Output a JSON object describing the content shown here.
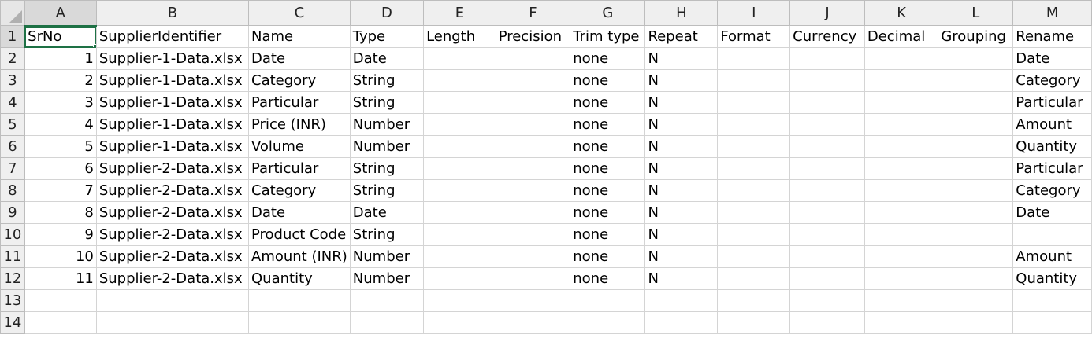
{
  "columns": [
    "A",
    "B",
    "C",
    "D",
    "E",
    "F",
    "G",
    "H",
    "I",
    "J",
    "K",
    "L",
    "M"
  ],
  "row_numbers": [
    "1",
    "2",
    "3",
    "4",
    "5",
    "6",
    "7",
    "8",
    "9",
    "10",
    "11",
    "12",
    "13",
    "14"
  ],
  "rows": [
    [
      "SrNo",
      "SupplierIdentifier",
      "Name",
      "Type",
      "Length",
      "Precision",
      "Trim type",
      "Repeat",
      "Format",
      "Currency",
      "Decimal",
      "Grouping",
      "Rename"
    ],
    [
      "1",
      "Supplier-1-Data.xlsx",
      "Date",
      "Date",
      "",
      "",
      "none",
      "N",
      "",
      "",
      "",
      "",
      "Date"
    ],
    [
      "2",
      "Supplier-1-Data.xlsx",
      "Category",
      "String",
      "",
      "",
      "none",
      "N",
      "",
      "",
      "",
      "",
      "Category"
    ],
    [
      "3",
      "Supplier-1-Data.xlsx",
      "Particular",
      "String",
      "",
      "",
      "none",
      "N",
      "",
      "",
      "",
      "",
      "Particular"
    ],
    [
      "4",
      "Supplier-1-Data.xlsx",
      "Price (INR)",
      "Number",
      "",
      "",
      "none",
      "N",
      "",
      "",
      "",
      "",
      "Amount"
    ],
    [
      "5",
      "Supplier-1-Data.xlsx",
      "Volume",
      "Number",
      "",
      "",
      "none",
      "N",
      "",
      "",
      "",
      "",
      "Quantity"
    ],
    [
      "6",
      "Supplier-2-Data.xlsx",
      "Particular",
      "String",
      "",
      "",
      "none",
      "N",
      "",
      "",
      "",
      "",
      "Particular"
    ],
    [
      "7",
      "Supplier-2-Data.xlsx",
      "Category",
      "String",
      "",
      "",
      "none",
      "N",
      "",
      "",
      "",
      "",
      "Category"
    ],
    [
      "8",
      "Supplier-2-Data.xlsx",
      "Date",
      "Date",
      "",
      "",
      "none",
      "N",
      "",
      "",
      "",
      "",
      "Date"
    ],
    [
      "9",
      "Supplier-2-Data.xlsx",
      "Product Code",
      "String",
      "",
      "",
      "none",
      "N",
      "",
      "",
      "",
      "",
      ""
    ],
    [
      "10",
      "Supplier-2-Data.xlsx",
      "Amount (INR)",
      "Number",
      "",
      "",
      "none",
      "N",
      "",
      "",
      "",
      "",
      "Amount"
    ],
    [
      "11",
      "Supplier-2-Data.xlsx",
      "Quantity",
      "Number",
      "",
      "",
      "none",
      "N",
      "",
      "",
      "",
      "",
      "Quantity"
    ],
    [
      "",
      "",
      "",
      "",
      "",
      "",
      "",
      "",
      "",
      "",
      "",
      "",
      ""
    ],
    [
      "",
      "",
      "",
      "",
      "",
      "",
      "",
      "",
      "",
      "",
      "",
      "",
      ""
    ]
  ]
}
